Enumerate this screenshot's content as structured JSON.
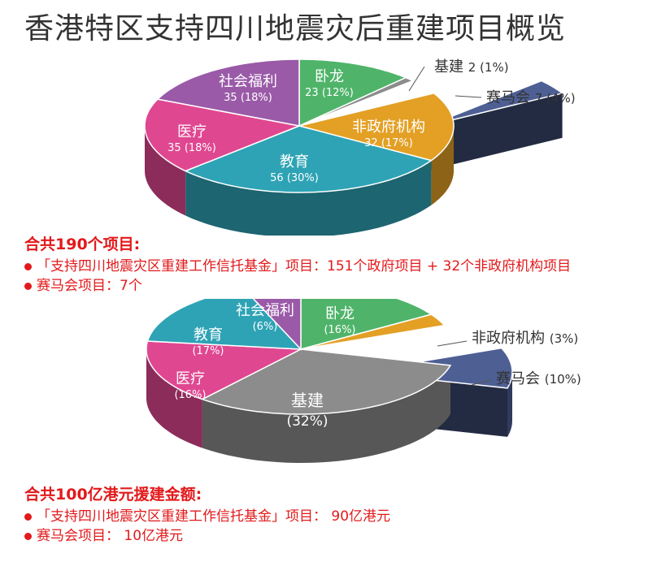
{
  "title": "香港特区支持四川地震灾后重建项目概览",
  "chart_data": [
    {
      "type": "pie",
      "slices": [
        {
          "name": "卧龙",
          "value": 23,
          "label": "23 (12%)",
          "color": "#4fb46a"
        },
        {
          "name": "基建",
          "value": 2,
          "label": "2 (1%)",
          "color": "#8c8c8c"
        },
        {
          "name": "赛马会",
          "value": 7,
          "label": "7 (4%)",
          "color": "#4e5f94"
        },
        {
          "name": "非政府机构",
          "value": 32,
          "label": "32 (17%)",
          "color": "#e3a025"
        },
        {
          "name": "教育",
          "value": 56,
          "label": "56 (30%)",
          "color": "#2ea3b5"
        },
        {
          "name": "医疗",
          "value": 35,
          "label": "35 (18%)",
          "color": "#e04791"
        },
        {
          "name": "社会福利",
          "value": 35,
          "label": "35 (18%)",
          "color": "#9a5aa8"
        }
      ]
    },
    {
      "type": "pie",
      "slices": [
        {
          "name": "卧龙",
          "value": 16,
          "label": "(16%)",
          "color": "#4fb46a"
        },
        {
          "name": "非政府机构",
          "value": 3,
          "label": "(3%)",
          "color": "#e3a025"
        },
        {
          "name": "赛马会",
          "value": 10,
          "label": "(10%)",
          "color": "#4e5f94"
        },
        {
          "name": "基建",
          "value": 32,
          "label": "(32%)",
          "color": "#8c8c8c"
        },
        {
          "name": "医疗",
          "value": 16,
          "label": "(16%)",
          "color": "#e04791"
        },
        {
          "name": "教育",
          "value": 17,
          "label": "(17%)",
          "color": "#2ea3b5"
        },
        {
          "name": "社会福利",
          "value": 6,
          "label": "(6%)",
          "color": "#9a5aa8"
        }
      ]
    }
  ],
  "summary1": {
    "heading": "合共190个项目:",
    "line1": "「支持四川地震灾区重建工作信托基金」项目：151个政府项目 + 32个非政府机构项目",
    "line2": "赛马会项目：7个"
  },
  "summary2": {
    "heading": "合共100亿港元援建金额:",
    "line1": "「支持四川地震灾区重建工作信托基金」项目： 90亿港元",
    "line2": "赛马会项目： 10亿港元"
  }
}
